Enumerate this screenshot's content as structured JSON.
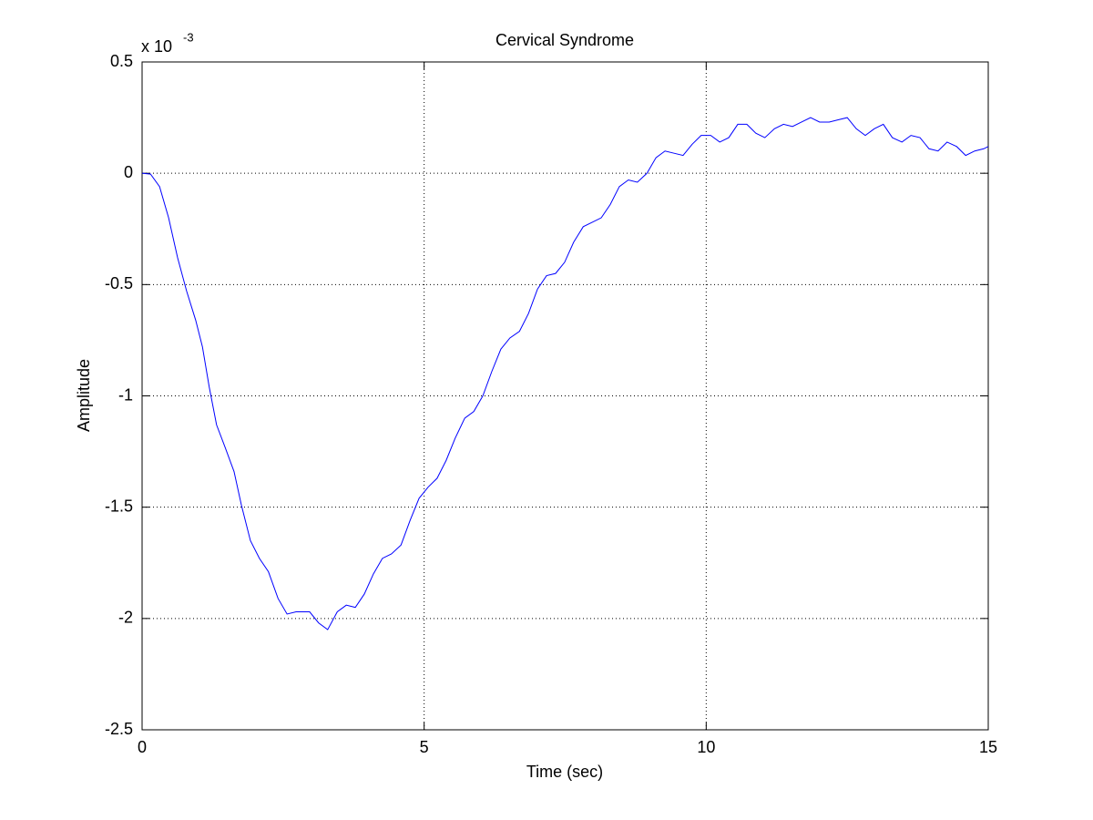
{
  "chart_data": {
    "type": "line",
    "title": "Cervical Syndrome",
    "x_label": "Time (sec)",
    "y_label": "Amplitude",
    "y_multiplier": {
      "base": "x 10",
      "exponent": "-3"
    },
    "x": [
      0,
      0.15,
      0.31,
      0.47,
      0.63,
      0.79,
      0.95,
      1.07,
      1.19,
      1.32,
      1.47,
      1.63,
      1.76,
      1.92,
      2.08,
      2.24,
      2.41,
      2.57,
      2.73,
      2.97,
      3.13,
      3.29,
      3.46,
      3.62,
      3.78,
      3.94,
      4.1,
      4.26,
      4.42,
      4.59,
      4.75,
      4.91,
      5.07,
      5.23,
      5.39,
      5.55,
      5.72,
      5.88,
      6.04,
      6.2,
      6.36,
      6.52,
      6.69,
      6.85,
      7.01,
      7.17,
      7.33,
      7.49,
      7.65,
      7.82,
      7.98,
      8.14,
      8.3,
      8.46,
      8.62,
      8.78,
      8.95,
      9.11,
      9.27,
      9.43,
      9.59,
      9.75,
      9.91,
      10.08,
      10.24,
      10.4,
      10.56,
      10.72,
      10.88,
      11.04,
      11.21,
      11.37,
      11.53,
      11.69,
      11.85,
      12.01,
      12.18,
      12.34,
      12.5,
      12.66,
      12.82,
      12.98,
      13.14,
      13.3,
      13.47,
      13.63,
      13.79,
      13.95,
      14.11,
      14.27,
      14.44,
      14.6,
      14.76,
      14.92,
      15
    ],
    "series": [
      {
        "name": "Amplitude",
        "color": "#0000ff",
        "values": [
          0,
          -0.004,
          -0.06,
          -0.2,
          -0.38,
          -0.53,
          -0.66,
          -0.78,
          -0.96,
          -1.13,
          -1.23,
          -1.34,
          -1.49,
          -1.65,
          -1.73,
          -1.79,
          -1.91,
          -1.98,
          -1.97,
          -1.97,
          -2.02,
          -2.05,
          -1.97,
          -1.94,
          -1.95,
          -1.89,
          -1.8,
          -1.73,
          -1.71,
          -1.67,
          -1.56,
          -1.46,
          -1.41,
          -1.37,
          -1.29,
          -1.19,
          -1.1,
          -1.07,
          -1.0,
          -0.89,
          -0.79,
          -0.74,
          -0.71,
          -0.63,
          -0.52,
          -0.46,
          -0.45,
          -0.4,
          -0.31,
          -0.24,
          -0.22,
          -0.2,
          -0.14,
          -0.06,
          -0.03,
          -0.04,
          0,
          0.07,
          0.1,
          0.09,
          0.08,
          0.13,
          0.17,
          0.17,
          0.14,
          0.16,
          0.22,
          0.22,
          0.18,
          0.16,
          0.2,
          0.22,
          0.21,
          0.23,
          0.25,
          0.23,
          0.23,
          0.24,
          0.25,
          0.2,
          0.17,
          0.2,
          0.22,
          0.16,
          0.14,
          0.17,
          0.16,
          0.11,
          0.1,
          0.14,
          0.12,
          0.08,
          0.1,
          0.11,
          0.12
        ]
      }
    ],
    "xlim": [
      0,
      15
    ],
    "xticks": [
      0,
      5,
      10,
      15
    ],
    "ylim": [
      -2.5,
      0.5
    ],
    "yticks": [
      -2.5,
      -2,
      -1.5,
      -1,
      -0.5,
      0,
      0.5
    ],
    "grid": true
  }
}
